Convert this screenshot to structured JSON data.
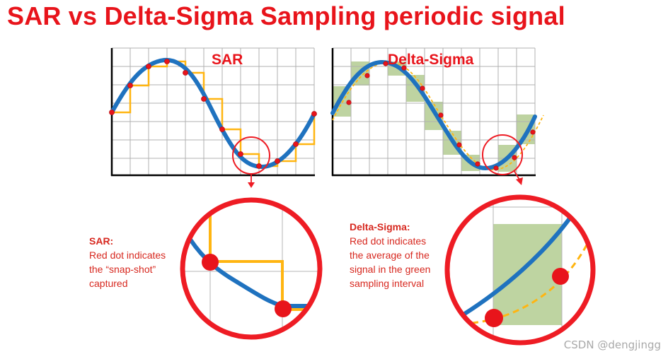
{
  "title": "SAR vs Delta-Sigma Sampling periodic signal",
  "sar_plot": {
    "label": "SAR"
  },
  "ds_plot": {
    "label": "Delta-Sigma"
  },
  "sar_note": {
    "heading": "SAR:",
    "lines": [
      "Red dot indicates",
      "the “snap-shot”",
      "captured"
    ]
  },
  "ds_note": {
    "heading": "Delta-Sigma:",
    "lines": [
      "Red dot indicates",
      "the average of the",
      "signal in the green",
      "sampling interval"
    ]
  },
  "watermark": "CSDN @dengjingg",
  "colors": {
    "title": "#e8141b",
    "signal": "#1f72bf",
    "staircase": "#ffb511",
    "sample_dot": "#e8141b",
    "interval_fill": "#aec98a",
    "zoom_circle": "#ee1c24",
    "grid": "#b0b0b0"
  }
}
